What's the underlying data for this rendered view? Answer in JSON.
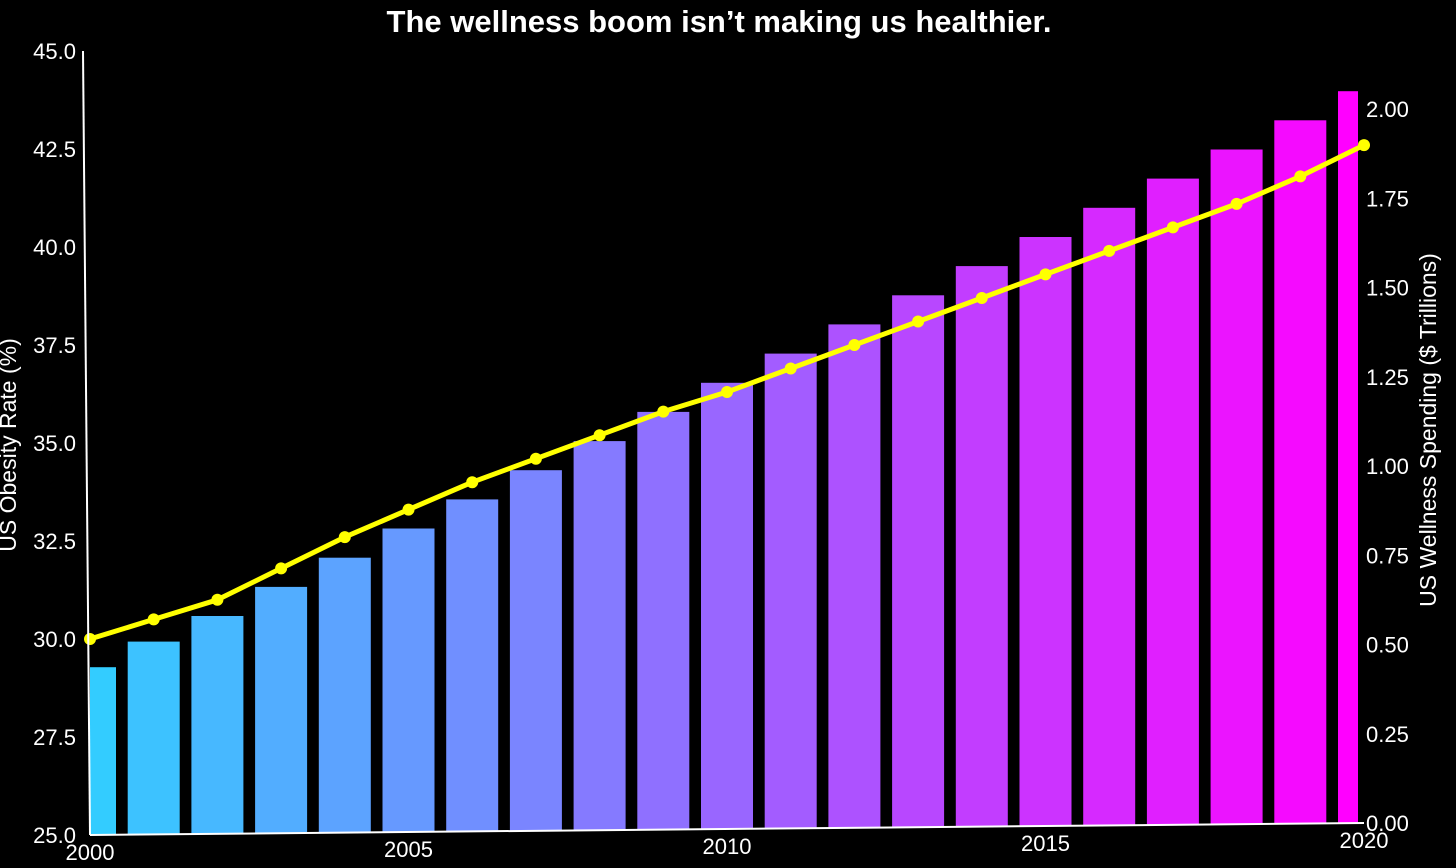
{
  "chart_data": {
    "type": "bar",
    "title": "The wellness boom isn’t making us healthier.",
    "xlabel": "",
    "categories": [
      2000,
      2001,
      2002,
      2003,
      2004,
      2005,
      2006,
      2007,
      2008,
      2009,
      2010,
      2011,
      2012,
      2013,
      2014,
      2015,
      2016,
      2017,
      2018,
      2019,
      2020
    ],
    "x_ticks": [
      2000,
      2005,
      2010,
      2015,
      2020
    ],
    "x_tick_labels": [
      "2000",
      "2005",
      "2010",
      "2015",
      "2020"
    ],
    "series": [
      {
        "name": "US Wellness Spending ($ Trillions)",
        "type": "bar",
        "axis": "right",
        "values": [
          0.47,
          0.54,
          0.61,
          0.69,
          0.77,
          0.85,
          0.93,
          1.01,
          1.09,
          1.17,
          1.25,
          1.33,
          1.41,
          1.49,
          1.57,
          1.65,
          1.73,
          1.81,
          1.89,
          1.97,
          2.05
        ]
      },
      {
        "name": "US Obesity Rate (%)",
        "type": "line",
        "axis": "left",
        "color": "#ffff00",
        "values": [
          30.0,
          30.5,
          31.0,
          31.8,
          32.6,
          33.3,
          34.0,
          34.6,
          35.2,
          35.8,
          36.3,
          36.9,
          37.5,
          38.1,
          38.7,
          39.3,
          39.9,
          40.5,
          41.1,
          41.8,
          42.6
        ]
      }
    ],
    "y_left": {
      "label": "US Obesity Rate (%)",
      "ylim": [
        25.0,
        45.0
      ],
      "ticks": [
        25.0,
        27.5,
        30.0,
        32.5,
        35.0,
        37.5,
        40.0,
        42.5,
        45.0
      ],
      "tick_labels": [
        "25.0",
        "27.5",
        "30.0",
        "32.5",
        "35.0",
        "37.5",
        "40.0",
        "42.5",
        "45.0"
      ]
    },
    "y_right": {
      "label": "US Wellness Spending ($ Trillions)",
      "ylim": [
        0.0,
        2.0
      ],
      "ticks": [
        0.0,
        0.25,
        0.5,
        0.75,
        1.0,
        1.25,
        1.5,
        1.75,
        2.0
      ],
      "tick_labels": [
        "0.00",
        "0.25",
        "0.50",
        "0.75",
        "1.00",
        "1.25",
        "1.50",
        "1.75",
        "2.00"
      ]
    },
    "bar_colors": {
      "start": "#33ccff",
      "end": "#ff00ff"
    },
    "grid": false,
    "legend": "none"
  }
}
